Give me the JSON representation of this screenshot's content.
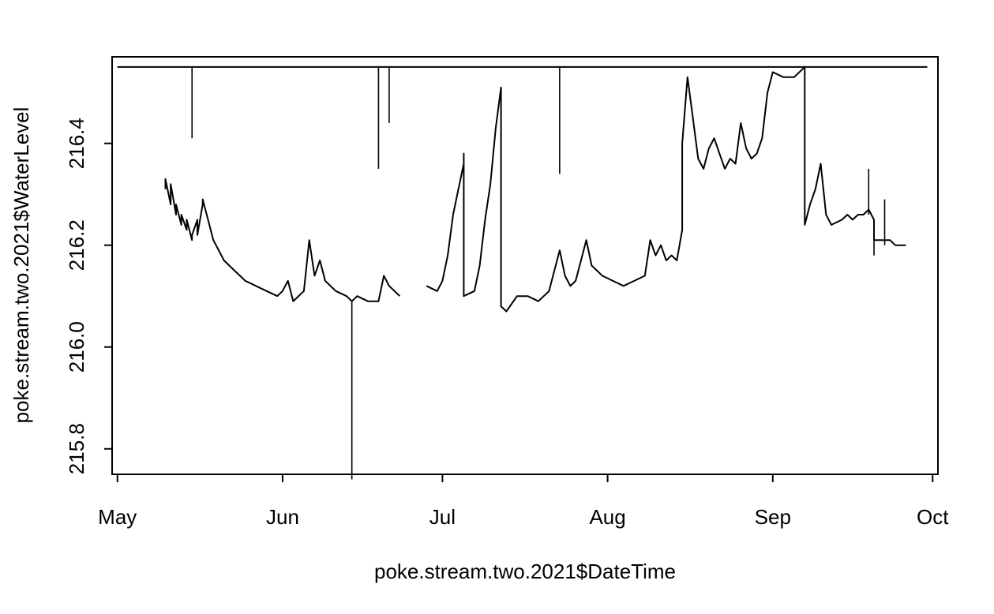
{
  "chart_data": {
    "type": "line",
    "title": "",
    "xlabel": "poke.stream.two.2021$DateTime",
    "ylabel": "poke.stream.two.2021$WaterLevel",
    "x_range": [
      "2021-04-30",
      "2021-10-02"
    ],
    "ylim": [
      215.75,
      216.57
    ],
    "x_ticks": [
      {
        "date": "2021-05-01",
        "label": "May"
      },
      {
        "date": "2021-06-01",
        "label": "Jun"
      },
      {
        "date": "2021-07-01",
        "label": "Jul"
      },
      {
        "date": "2021-08-01",
        "label": "Aug"
      },
      {
        "date": "2021-09-01",
        "label": "Sep"
      },
      {
        "date": "2021-10-01",
        "label": "Oct"
      }
    ],
    "y_ticks": [
      215.8,
      216.0,
      216.2,
      216.4
    ],
    "y_tick_labels": [
      "215.8",
      "216.0",
      "216.2",
      "216.4"
    ],
    "grid": false,
    "legend": "none",
    "line_color": "#000000",
    "series": [
      {
        "segments": [
          [
            [
              "2021-05-01",
              216.55
            ],
            [
              "2021-09-30",
              216.55
            ]
          ],
          [
            [
              "2021-05-10",
              216.31
            ],
            [
              "2021-05-10",
              216.33
            ],
            [
              "2021-05-11",
              216.28
            ],
            [
              "2021-05-11",
              216.32
            ],
            [
              "2021-05-12",
              216.26
            ],
            [
              "2021-05-12",
              216.28
            ],
            [
              "2021-05-13",
              216.24
            ],
            [
              "2021-05-13",
              216.26
            ],
            [
              "2021-05-14",
              216.23
            ],
            [
              "2021-05-14",
              216.25
            ],
            [
              "2021-05-15",
              216.21
            ],
            [
              "2021-05-15",
              216.22
            ],
            [
              "2021-05-16",
              216.25
            ],
            [
              "2021-05-16",
              216.22
            ],
            [
              "2021-05-17",
              216.28
            ],
            [
              "2021-05-17",
              216.29
            ],
            [
              "2021-05-18",
              216.25
            ],
            [
              "2021-05-19",
              216.21
            ],
            [
              "2021-05-20",
              216.19
            ],
            [
              "2021-05-21",
              216.17
            ],
            [
              "2021-05-23",
              216.15
            ],
            [
              "2021-05-25",
              216.13
            ],
            [
              "2021-05-27",
              216.12
            ],
            [
              "2021-05-29",
              216.11
            ],
            [
              "2021-05-31",
              216.1
            ],
            [
              "2021-06-01",
              216.11
            ],
            [
              "2021-06-02",
              216.13
            ],
            [
              "2021-06-03",
              216.09
            ],
            [
              "2021-06-05",
              216.11
            ],
            [
              "2021-06-06",
              216.21
            ],
            [
              "2021-06-07",
              216.14
            ],
            [
              "2021-06-08",
              216.17
            ],
            [
              "2021-06-09",
              216.13
            ],
            [
              "2021-06-11",
              216.11
            ],
            [
              "2021-06-13",
              216.1
            ],
            [
              "2021-06-14",
              216.09
            ],
            [
              "2021-06-15",
              216.1
            ],
            [
              "2021-06-17",
              216.09
            ],
            [
              "2021-06-19",
              216.09
            ],
            [
              "2021-06-20",
              216.14
            ],
            [
              "2021-06-21",
              216.12
            ],
            [
              "2021-06-22",
              216.11
            ],
            [
              "2021-06-23",
              216.1
            ]
          ],
          [
            [
              "2021-06-28",
              216.12
            ],
            [
              "2021-06-30",
              216.11
            ],
            [
              "2021-07-01",
              216.13
            ],
            [
              "2021-07-02",
              216.18
            ],
            [
              "2021-07-03",
              216.26
            ],
            [
              "2021-07-04",
              216.31
            ],
            [
              "2021-07-05",
              216.36
            ],
            [
              "2021-07-05",
              216.38
            ],
            [
              "2021-07-05",
              216.1
            ],
            [
              "2021-07-07",
              216.11
            ],
            [
              "2021-07-08",
              216.16
            ],
            [
              "2021-07-09",
              216.25
            ],
            [
              "2021-07-10",
              216.32
            ],
            [
              "2021-07-11",
              216.43
            ],
            [
              "2021-07-12",
              216.51
            ],
            [
              "2021-07-12",
              216.08
            ],
            [
              "2021-07-13",
              216.07
            ],
            [
              "2021-07-15",
              216.1
            ],
            [
              "2021-07-17",
              216.1
            ],
            [
              "2021-07-19",
              216.09
            ],
            [
              "2021-07-21",
              216.11
            ],
            [
              "2021-07-23",
              216.19
            ],
            [
              "2021-07-24",
              216.14
            ],
            [
              "2021-07-25",
              216.12
            ],
            [
              "2021-07-26",
              216.13
            ],
            [
              "2021-07-27",
              216.17
            ],
            [
              "2021-07-28",
              216.21
            ],
            [
              "2021-07-29",
              216.16
            ],
            [
              "2021-07-31",
              216.14
            ],
            [
              "2021-08-02",
              216.13
            ],
            [
              "2021-08-04",
              216.12
            ],
            [
              "2021-08-06",
              216.13
            ],
            [
              "2021-08-08",
              216.14
            ],
            [
              "2021-08-09",
              216.21
            ],
            [
              "2021-08-10",
              216.18
            ],
            [
              "2021-08-11",
              216.2
            ],
            [
              "2021-08-12",
              216.17
            ],
            [
              "2021-08-13",
              216.18
            ],
            [
              "2021-08-14",
              216.17
            ],
            [
              "2021-08-15",
              216.23
            ],
            [
              "2021-08-15",
              216.4
            ],
            [
              "2021-08-16",
              216.53
            ],
            [
              "2021-08-17",
              216.45
            ],
            [
              "2021-08-18",
              216.37
            ],
            [
              "2021-08-19",
              216.35
            ],
            [
              "2021-08-20",
              216.39
            ],
            [
              "2021-08-21",
              216.41
            ],
            [
              "2021-08-22",
              216.38
            ],
            [
              "2021-08-23",
              216.35
            ],
            [
              "2021-08-24",
              216.37
            ],
            [
              "2021-08-25",
              216.36
            ],
            [
              "2021-08-26",
              216.44
            ],
            [
              "2021-08-27",
              216.39
            ],
            [
              "2021-08-28",
              216.37
            ],
            [
              "2021-08-29",
              216.38
            ],
            [
              "2021-08-30",
              216.41
            ],
            [
              "2021-08-31",
              216.5
            ],
            [
              "2021-09-01",
              216.54
            ],
            [
              "2021-09-03",
              216.53
            ],
            [
              "2021-09-05",
              216.53
            ],
            [
              "2021-09-07",
              216.55
            ],
            [
              "2021-09-07",
              216.24
            ],
            [
              "2021-09-08",
              216.28
            ],
            [
              "2021-09-09",
              216.31
            ],
            [
              "2021-09-10",
              216.36
            ],
            [
              "2021-09-11",
              216.26
            ],
            [
              "2021-09-12",
              216.24
            ],
            [
              "2021-09-14",
              216.25
            ],
            [
              "2021-09-15",
              216.26
            ],
            [
              "2021-09-16",
              216.25
            ],
            [
              "2021-09-17",
              216.26
            ],
            [
              "2021-09-18",
              216.26
            ],
            [
              "2021-09-19",
              216.27
            ],
            [
              "2021-09-20",
              216.25
            ],
            [
              "2021-09-20",
              216.21
            ],
            [
              "2021-09-22",
              216.21
            ],
            [
              "2021-09-23",
              216.21
            ],
            [
              "2021-09-24",
              216.2
            ],
            [
              "2021-09-26",
              216.2
            ]
          ]
        ],
        "spikes": [
          {
            "date": "2021-05-15",
            "from": 216.55,
            "to": 216.41
          },
          {
            "date": "2021-06-14",
            "from": 216.09,
            "to": 215.74
          },
          {
            "date": "2021-06-19",
            "from": 216.55,
            "to": 216.35
          },
          {
            "date": "2021-06-21",
            "from": 216.55,
            "to": 216.44
          },
          {
            "date": "2021-07-23",
            "from": 216.55,
            "to": 216.34
          },
          {
            "date": "2021-09-19",
            "from": 216.26,
            "to": 216.35
          },
          {
            "date": "2021-09-20",
            "from": 216.21,
            "to": 216.18
          },
          {
            "date": "2021-09-22",
            "from": 216.2,
            "to": 216.29
          }
        ]
      }
    ]
  }
}
